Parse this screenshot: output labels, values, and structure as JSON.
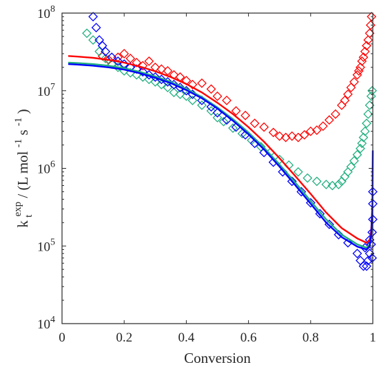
{
  "chart_data": {
    "type": "scatter",
    "title": "",
    "xlabel": "Conversion",
    "ylabel": {
      "k": "k",
      "t": "t",
      "exp": "exp",
      "units_open": " / (L mol",
      "units_exp1": "-1",
      "units_mid": " s",
      "units_exp2": "-1",
      "units_close": ")"
    },
    "xlim": [
      0,
      1
    ],
    "ylim": [
      10000,
      100000000
    ],
    "yscale": "log",
    "grid": false,
    "legend": "none",
    "x_ticks": [
      {
        "value": 0,
        "label": "0"
      },
      {
        "value": 0.2,
        "label": "0.2"
      },
      {
        "value": 0.4,
        "label": "0.4"
      },
      {
        "value": 0.6,
        "label": "0.6"
      },
      {
        "value": 0.8,
        "label": "0.8"
      },
      {
        "value": 1,
        "label": "1"
      }
    ],
    "y_ticks": [
      {
        "value": 10000,
        "base": "10",
        "exp": "4"
      },
      {
        "value": 100000,
        "base": "10",
        "exp": "5"
      },
      {
        "value": 1000000,
        "base": "10",
        "exp": "6"
      },
      {
        "value": 10000000,
        "base": "10",
        "exp": "7"
      },
      {
        "value": 100000000,
        "base": "10",
        "exp": "8"
      }
    ],
    "series": [
      {
        "color": "#ff0000",
        "marker": "diamond-open",
        "points": [
          [
            0.13,
            28000000.0
          ],
          [
            0.15,
            25000000.0
          ],
          [
            0.18,
            27000000.0
          ],
          [
            0.2,
            30000000.0
          ],
          [
            0.22,
            26000000.0
          ],
          [
            0.24,
            23000000.0
          ],
          [
            0.26,
            21000000.0
          ],
          [
            0.28,
            24000000.0
          ],
          [
            0.3,
            20000000.0
          ],
          [
            0.32,
            19000000.0
          ],
          [
            0.34,
            18000000.0
          ],
          [
            0.36,
            16000000.0
          ],
          [
            0.38,
            15000000.0
          ],
          [
            0.4,
            13500000.0
          ],
          [
            0.42,
            12000000.0
          ],
          [
            0.45,
            12500000.0
          ],
          [
            0.48,
            10500000.0
          ],
          [
            0.5,
            8500000.0
          ],
          [
            0.53,
            7500000.0
          ],
          [
            0.56,
            5500000.0
          ],
          [
            0.59,
            4800000.0
          ],
          [
            0.62,
            3800000.0
          ],
          [
            0.65,
            3400000.0
          ],
          [
            0.68,
            2900000.0
          ],
          [
            0.7,
            2600000.0
          ],
          [
            0.72,
            2500000.0
          ],
          [
            0.74,
            2600000.0
          ],
          [
            0.76,
            2500000.0
          ],
          [
            0.78,
            2700000.0
          ],
          [
            0.8,
            3000000.0
          ],
          [
            0.82,
            3100000.0
          ],
          [
            0.84,
            3500000.0
          ],
          [
            0.86,
            4200000.0
          ],
          [
            0.88,
            5000000.0
          ],
          [
            0.9,
            6500000.0
          ],
          [
            0.91,
            7500000.0
          ],
          [
            0.92,
            9000000.0
          ],
          [
            0.93,
            11000000.0
          ],
          [
            0.94,
            13000000.0
          ],
          [
            0.95,
            16000000.0
          ],
          [
            0.955,
            18000000.0
          ],
          [
            0.96,
            20000000.0
          ],
          [
            0.965,
            24000000.0
          ],
          [
            0.97,
            27000000.0
          ],
          [
            0.975,
            32000000.0
          ],
          [
            0.98,
            38000000.0
          ],
          [
            0.985,
            45000000.0
          ],
          [
            0.99,
            55000000.0
          ],
          [
            0.993,
            70000000.0
          ],
          [
            0.996,
            90000000.0
          ]
        ]
      },
      {
        "color": "#22b07f",
        "marker": "diamond-open",
        "points": [
          [
            0.08,
            55000000.0
          ],
          [
            0.1,
            45000000.0
          ],
          [
            0.12,
            32000000.0
          ],
          [
            0.14,
            26000000.0
          ],
          [
            0.16,
            22000000.0
          ],
          [
            0.18,
            20000000.0
          ],
          [
            0.2,
            18000000.0
          ],
          [
            0.22,
            17000000.0
          ],
          [
            0.24,
            16000000.0
          ],
          [
            0.26,
            15000000.0
          ],
          [
            0.28,
            14000000.0
          ],
          [
            0.3,
            13000000.0
          ],
          [
            0.32,
            12000000.0
          ],
          [
            0.34,
            11000000.0
          ],
          [
            0.36,
            9500000.0
          ],
          [
            0.38,
            9000000.0
          ],
          [
            0.4,
            8500000.0
          ],
          [
            0.42,
            7500000.0
          ],
          [
            0.45,
            6500000.0
          ],
          [
            0.48,
            5500000.0
          ],
          [
            0.5,
            4500000.0
          ],
          [
            0.52,
            4000000.0
          ],
          [
            0.55,
            3300000.0
          ],
          [
            0.58,
            2800000.0
          ],
          [
            0.61,
            2300000.0
          ],
          [
            0.64,
            1900000.0
          ],
          [
            0.67,
            1600000.0
          ],
          [
            0.7,
            1300000.0
          ],
          [
            0.73,
            1100000.0
          ],
          [
            0.76,
            900000.0
          ],
          [
            0.79,
            750000.0
          ],
          [
            0.82,
            680000.0
          ],
          [
            0.85,
            620000.0
          ],
          [
            0.87,
            600000.0
          ],
          [
            0.89,
            620000.0
          ],
          [
            0.9,
            680000.0
          ],
          [
            0.91,
            780000.0
          ],
          [
            0.92,
            900000.0
          ],
          [
            0.93,
            1050000.0
          ],
          [
            0.94,
            1250000.0
          ],
          [
            0.95,
            1500000.0
          ],
          [
            0.96,
            1800000.0
          ],
          [
            0.965,
            2100000.0
          ],
          [
            0.97,
            2500000.0
          ],
          [
            0.975,
            3000000.0
          ],
          [
            0.98,
            3800000.0
          ],
          [
            0.985,
            5000000.0
          ],
          [
            0.99,
            6500000.0
          ],
          [
            0.995,
            8500000.0
          ],
          [
            0.998,
            10000000.0
          ]
        ]
      },
      {
        "color": "#0000ff",
        "marker": "diamond-open",
        "points": [
          [
            0.1,
            90000000.0
          ],
          [
            0.11,
            65000000.0
          ],
          [
            0.12,
            45000000.0
          ],
          [
            0.13,
            38000000.0
          ],
          [
            0.14,
            32000000.0
          ],
          [
            0.16,
            27000000.0
          ],
          [
            0.18,
            24000000.0
          ],
          [
            0.2,
            22000000.0
          ],
          [
            0.22,
            20000000.0
          ],
          [
            0.24,
            19000000.0
          ],
          [
            0.26,
            17500000.0
          ],
          [
            0.28,
            16000000.0
          ],
          [
            0.3,
            15000000.0
          ],
          [
            0.32,
            14000000.0
          ],
          [
            0.34,
            13000000.0
          ],
          [
            0.36,
            12000000.0
          ],
          [
            0.38,
            11000000.0
          ],
          [
            0.4,
            10000000.0
          ],
          [
            0.42,
            9000000.0
          ],
          [
            0.45,
            7500000.0
          ],
          [
            0.48,
            6200000.0
          ],
          [
            0.5,
            5200000.0
          ],
          [
            0.53,
            4200000.0
          ],
          [
            0.56,
            3400000.0
          ],
          [
            0.59,
            2700000.0
          ],
          [
            0.62,
            2100000.0
          ],
          [
            0.65,
            1600000.0
          ],
          [
            0.68,
            1200000.0
          ],
          [
            0.71,
            900000.0
          ],
          [
            0.74,
            680000.0
          ],
          [
            0.77,
            500000.0
          ],
          [
            0.8,
            360000.0
          ],
          [
            0.83,
            260000.0
          ],
          [
            0.86,
            190000.0
          ],
          [
            0.89,
            140000.0
          ],
          [
            0.92,
            110000.0
          ],
          [
            0.95,
            80000.0
          ],
          [
            0.96,
            65000.0
          ],
          [
            0.97,
            55000.0
          ],
          [
            0.98,
            55000.0
          ],
          [
            0.985,
            65000.0
          ],
          [
            0.99,
            80000.0
          ],
          [
            0.995,
            105000.0
          ],
          [
            0.998,
            150000.0
          ],
          [
            1.0,
            220000.0
          ],
          [
            1.0,
            350000.0
          ],
          [
            1.0,
            500000.0
          ],
          [
            0.998,
            70000.0
          ],
          [
            0.99,
            120000.0
          ],
          [
            0.975,
            95000.0
          ]
        ]
      }
    ],
    "model_lines": [
      {
        "color": "#ff0000",
        "points": [
          [
            0.02,
            28000000.0
          ],
          [
            0.05,
            27500000.0
          ],
          [
            0.1,
            26500000.0
          ],
          [
            0.15,
            25000000.0
          ],
          [
            0.2,
            23000000.0
          ],
          [
            0.25,
            20500000.0
          ],
          [
            0.3,
            17800000.0
          ],
          [
            0.35,
            15000000.0
          ],
          [
            0.4,
            12200000.0
          ],
          [
            0.45,
            9500000.0
          ],
          [
            0.5,
            7000000.0
          ],
          [
            0.55,
            5000000.0
          ],
          [
            0.6,
            3400000.0
          ],
          [
            0.65,
            2200000.0
          ],
          [
            0.7,
            1350000.0
          ],
          [
            0.75,
            800000.0
          ],
          [
            0.8,
            470000.0
          ],
          [
            0.85,
            270000.0
          ],
          [
            0.9,
            170000.0
          ],
          [
            0.95,
            125000.0
          ],
          [
            0.98,
            110000.0
          ],
          [
            0.99,
            120000.0
          ],
          [
            0.995,
            160000.0
          ],
          [
            0.999,
            300000.0
          ]
        ]
      },
      {
        "color": "#22b07f",
        "points": [
          [
            0.02,
            23000000.0
          ],
          [
            0.05,
            22700000.0
          ],
          [
            0.1,
            22000000.0
          ],
          [
            0.15,
            21000000.0
          ],
          [
            0.2,
            19500000.0
          ],
          [
            0.25,
            17500000.0
          ],
          [
            0.3,
            15300000.0
          ],
          [
            0.35,
            13000000.0
          ],
          [
            0.4,
            10600000.0
          ],
          [
            0.45,
            8300000.0
          ],
          [
            0.5,
            6100000.0
          ],
          [
            0.55,
            4300000.0
          ],
          [
            0.6,
            2900000.0
          ],
          [
            0.65,
            1850000.0
          ],
          [
            0.7,
            1120000.0
          ],
          [
            0.75,
            660000.0
          ],
          [
            0.8,
            380000.0
          ],
          [
            0.85,
            220000.0
          ],
          [
            0.9,
            140000.0
          ],
          [
            0.95,
            105000.0
          ],
          [
            0.98,
            95000.0
          ],
          [
            0.99,
            105000.0
          ],
          [
            0.995,
            140000.0
          ],
          [
            0.999,
            260000.0
          ]
        ]
      },
      {
        "color": "#0000ff",
        "points": [
          [
            0.02,
            22000000.0
          ],
          [
            0.05,
            21700000.0
          ],
          [
            0.1,
            21000000.0
          ],
          [
            0.15,
            20000000.0
          ],
          [
            0.2,
            18700000.0
          ],
          [
            0.25,
            16800000.0
          ],
          [
            0.3,
            14700000.0
          ],
          [
            0.35,
            12500000.0
          ],
          [
            0.4,
            10200000.0
          ],
          [
            0.45,
            8000000.0
          ],
          [
            0.5,
            5900000.0
          ],
          [
            0.55,
            4100000.0
          ],
          [
            0.6,
            2750000.0
          ],
          [
            0.65,
            1750000.0
          ],
          [
            0.7,
            1050000.0
          ],
          [
            0.75,
            610000.0
          ],
          [
            0.8,
            350000.0
          ],
          [
            0.85,
            200000.0
          ],
          [
            0.9,
            130000.0
          ],
          [
            0.95,
            98000.0
          ],
          [
            0.98,
            90000.0
          ],
          [
            0.99,
            100000.0
          ],
          [
            0.995,
            140000.0
          ],
          [
            0.999,
            350000.0
          ],
          [
            1.0,
            1700000.0
          ]
        ]
      }
    ]
  }
}
